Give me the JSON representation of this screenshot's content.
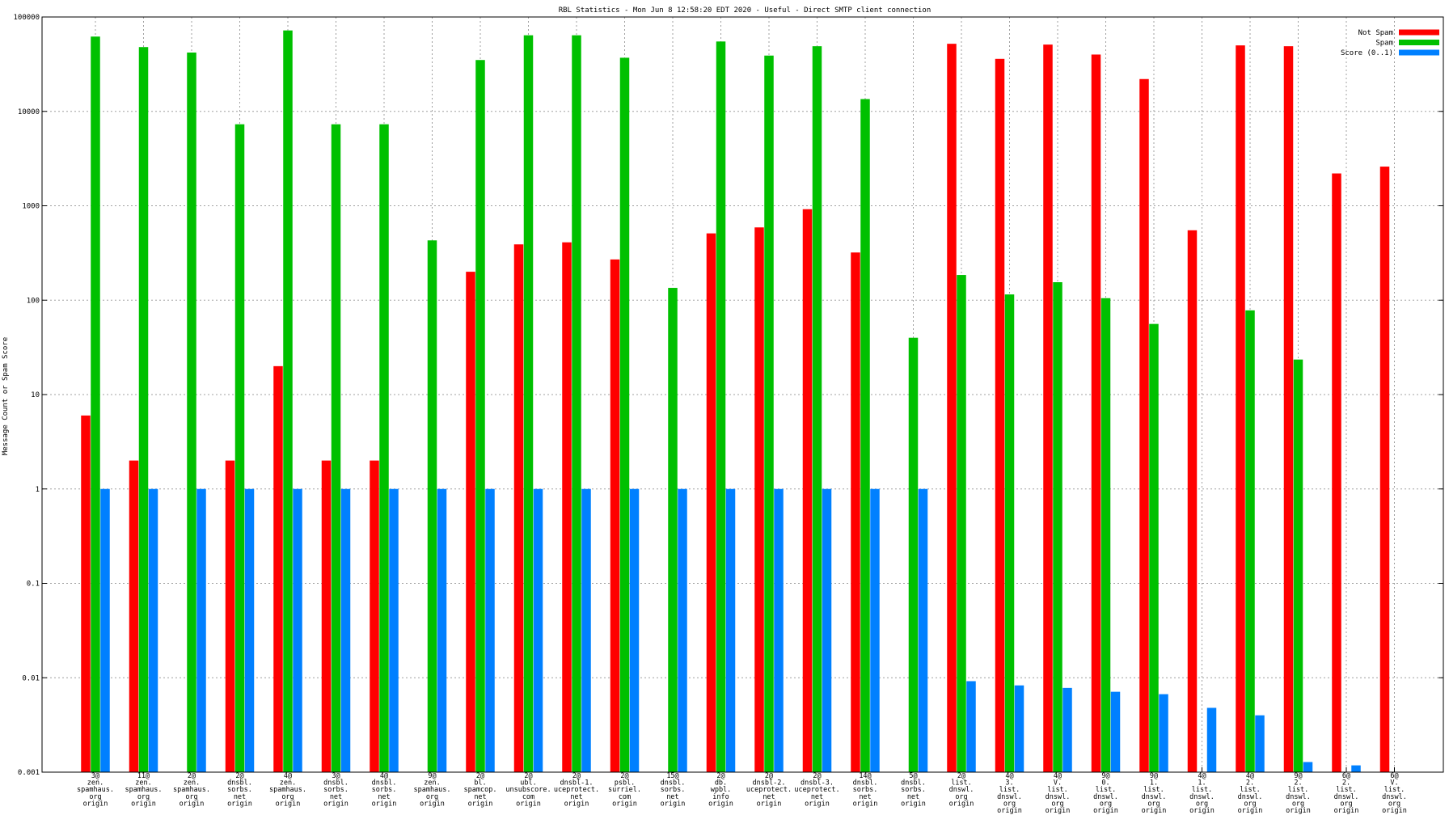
{
  "chart_data": {
    "type": "bar",
    "title": "RBL Statistics - Mon Jun  8 12:58:20 EDT 2020 - Useful - Direct SMTP client connection",
    "xlabel": "",
    "ylabel": "Message Count or Spam Score",
    "yscale": "log",
    "ylim": [
      0.001,
      100000
    ],
    "yticks": [
      "0.001",
      "0.01",
      "0.1",
      "1",
      "10",
      "100",
      "1000",
      "10000",
      "100000"
    ],
    "grid": true,
    "legend_position": "top-right",
    "categories": [
      [
        "3@",
        "zen.",
        "spamhaus.",
        "org",
        "origin"
      ],
      [
        "11@",
        "zen.",
        "spamhaus.",
        "org",
        "origin"
      ],
      [
        "2@",
        "zen.",
        "spamhaus.",
        "org",
        "origin"
      ],
      [
        "2@",
        "dnsbl.",
        "sorbs.",
        "net",
        "origin"
      ],
      [
        "4@",
        "zen.",
        "spamhaus.",
        "org",
        "origin"
      ],
      [
        "3@",
        "dnsbl.",
        "sorbs.",
        "net",
        "origin"
      ],
      [
        "4@",
        "dnsbl.",
        "sorbs.",
        "net",
        "origin"
      ],
      [
        "9@",
        "zen.",
        "spamhaus.",
        "org",
        "origin"
      ],
      [
        "2@",
        "bl.",
        "spamcop.",
        "net",
        "origin"
      ],
      [
        "2@",
        "ubl.",
        "unsubscore.",
        "com",
        "origin"
      ],
      [
        "2@",
        "dnsbl-1.",
        "uceprotect.",
        "net",
        "origin"
      ],
      [
        "2@",
        "psbl.",
        "surriel.",
        "com",
        "origin"
      ],
      [
        "15@",
        "dnsbl.",
        "sorbs.",
        "net",
        "origin"
      ],
      [
        "2@",
        "db.",
        "wpbl.",
        "info",
        "origin"
      ],
      [
        "2@",
        "dnsbl-2.",
        "uceprotect.",
        "net",
        "origin"
      ],
      [
        "2@",
        "dnsbl-3.",
        "uceprotect.",
        "net",
        "origin"
      ],
      [
        "14@",
        "dnsbl.",
        "sorbs.",
        "net",
        "origin"
      ],
      [
        "5@",
        "dnsbl.",
        "sorbs.",
        "net",
        "origin"
      ],
      [
        "2@",
        "list.",
        "dnswl.",
        "org",
        "origin"
      ],
      [
        "4@",
        "3.",
        "list.",
        "dnswl.",
        "org",
        "origin"
      ],
      [
        "4@",
        "V.",
        "list.",
        "dnswl.",
        "org",
        "origin"
      ],
      [
        "9@",
        "0.",
        "list.",
        "dnswl.",
        "org",
        "origin"
      ],
      [
        "9@",
        "1.",
        "list.",
        "dnswl.",
        "org",
        "origin"
      ],
      [
        "4@",
        "1.",
        "list.",
        "dnswl.",
        "org",
        "origin"
      ],
      [
        "4@",
        "2.",
        "list.",
        "dnswl.",
        "org",
        "origin"
      ],
      [
        "9@",
        "2.",
        "list.",
        "dnswl.",
        "org",
        "origin"
      ],
      [
        "6@",
        "2.",
        "list.",
        "dnswl.",
        "org",
        "origin"
      ],
      [
        "6@",
        "V.",
        "list.",
        "dnswl.",
        "org",
        "origin"
      ]
    ],
    "series": [
      {
        "name": "Not Spam",
        "color": "#ff0000",
        "values": [
          6,
          2,
          null,
          2,
          20,
          2,
          2,
          null,
          200,
          390,
          410,
          270,
          null,
          510,
          590,
          920,
          320,
          null,
          52000,
          36000,
          51000,
          40000,
          22000,
          550,
          50000,
          49000,
          2200,
          2600
        ]
      },
      {
        "name": "Spam",
        "color": "#00c000",
        "values": [
          62000,
          48000,
          42000,
          7300,
          72000,
          7300,
          7300,
          430,
          35000,
          64000,
          64000,
          37000,
          135,
          55000,
          39000,
          49000,
          13500,
          40,
          185,
          115,
          155,
          105,
          56,
          null,
          78,
          23.5,
          null,
          null
        ]
      },
      {
        "name": "Score (0..1)",
        "color": "#0080ff",
        "values": [
          1,
          1,
          1,
          1,
          1,
          1,
          1,
          1,
          1,
          1,
          1,
          1,
          1,
          1,
          1,
          1,
          1,
          1,
          0.0092,
          0.0083,
          0.0078,
          0.0071,
          0.0067,
          0.0048,
          0.004,
          0.00128,
          0.00118,
          0.00101
        ]
      }
    ]
  }
}
